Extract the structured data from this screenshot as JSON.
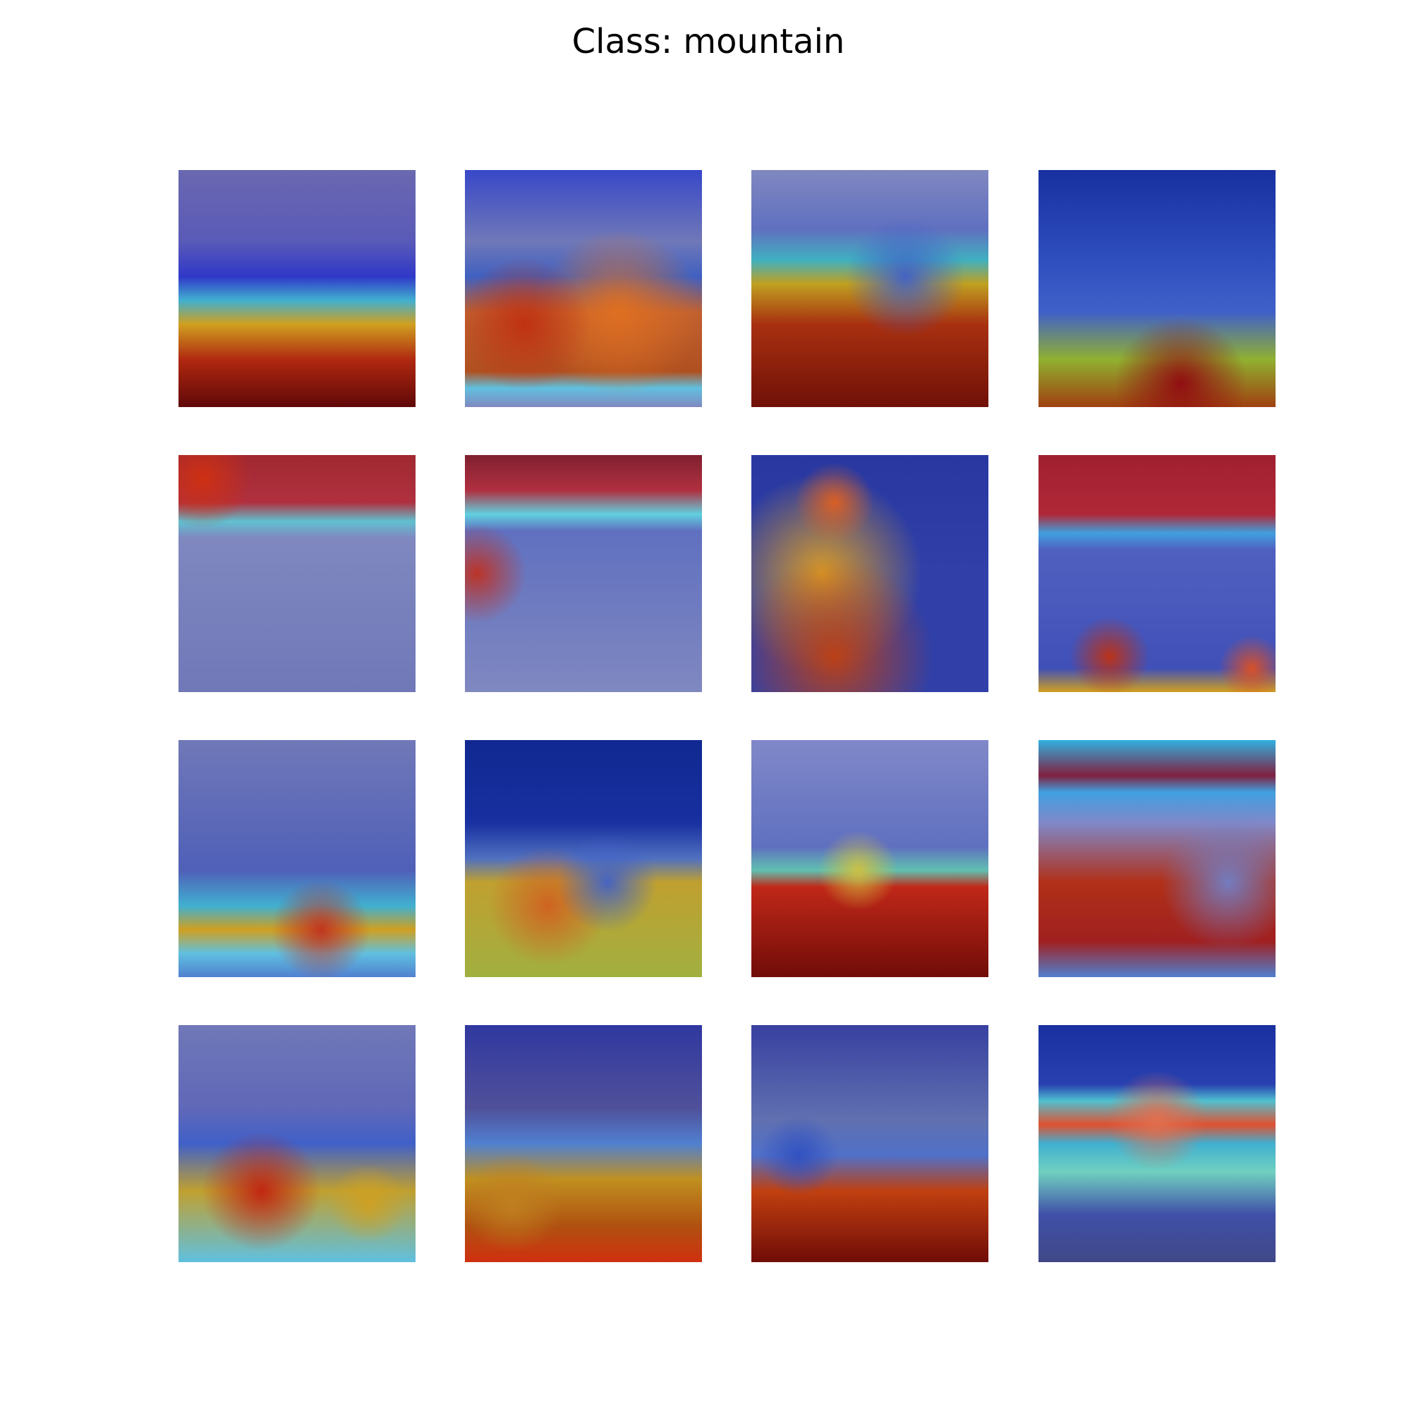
{
  "title": "Class: mountain"
}
